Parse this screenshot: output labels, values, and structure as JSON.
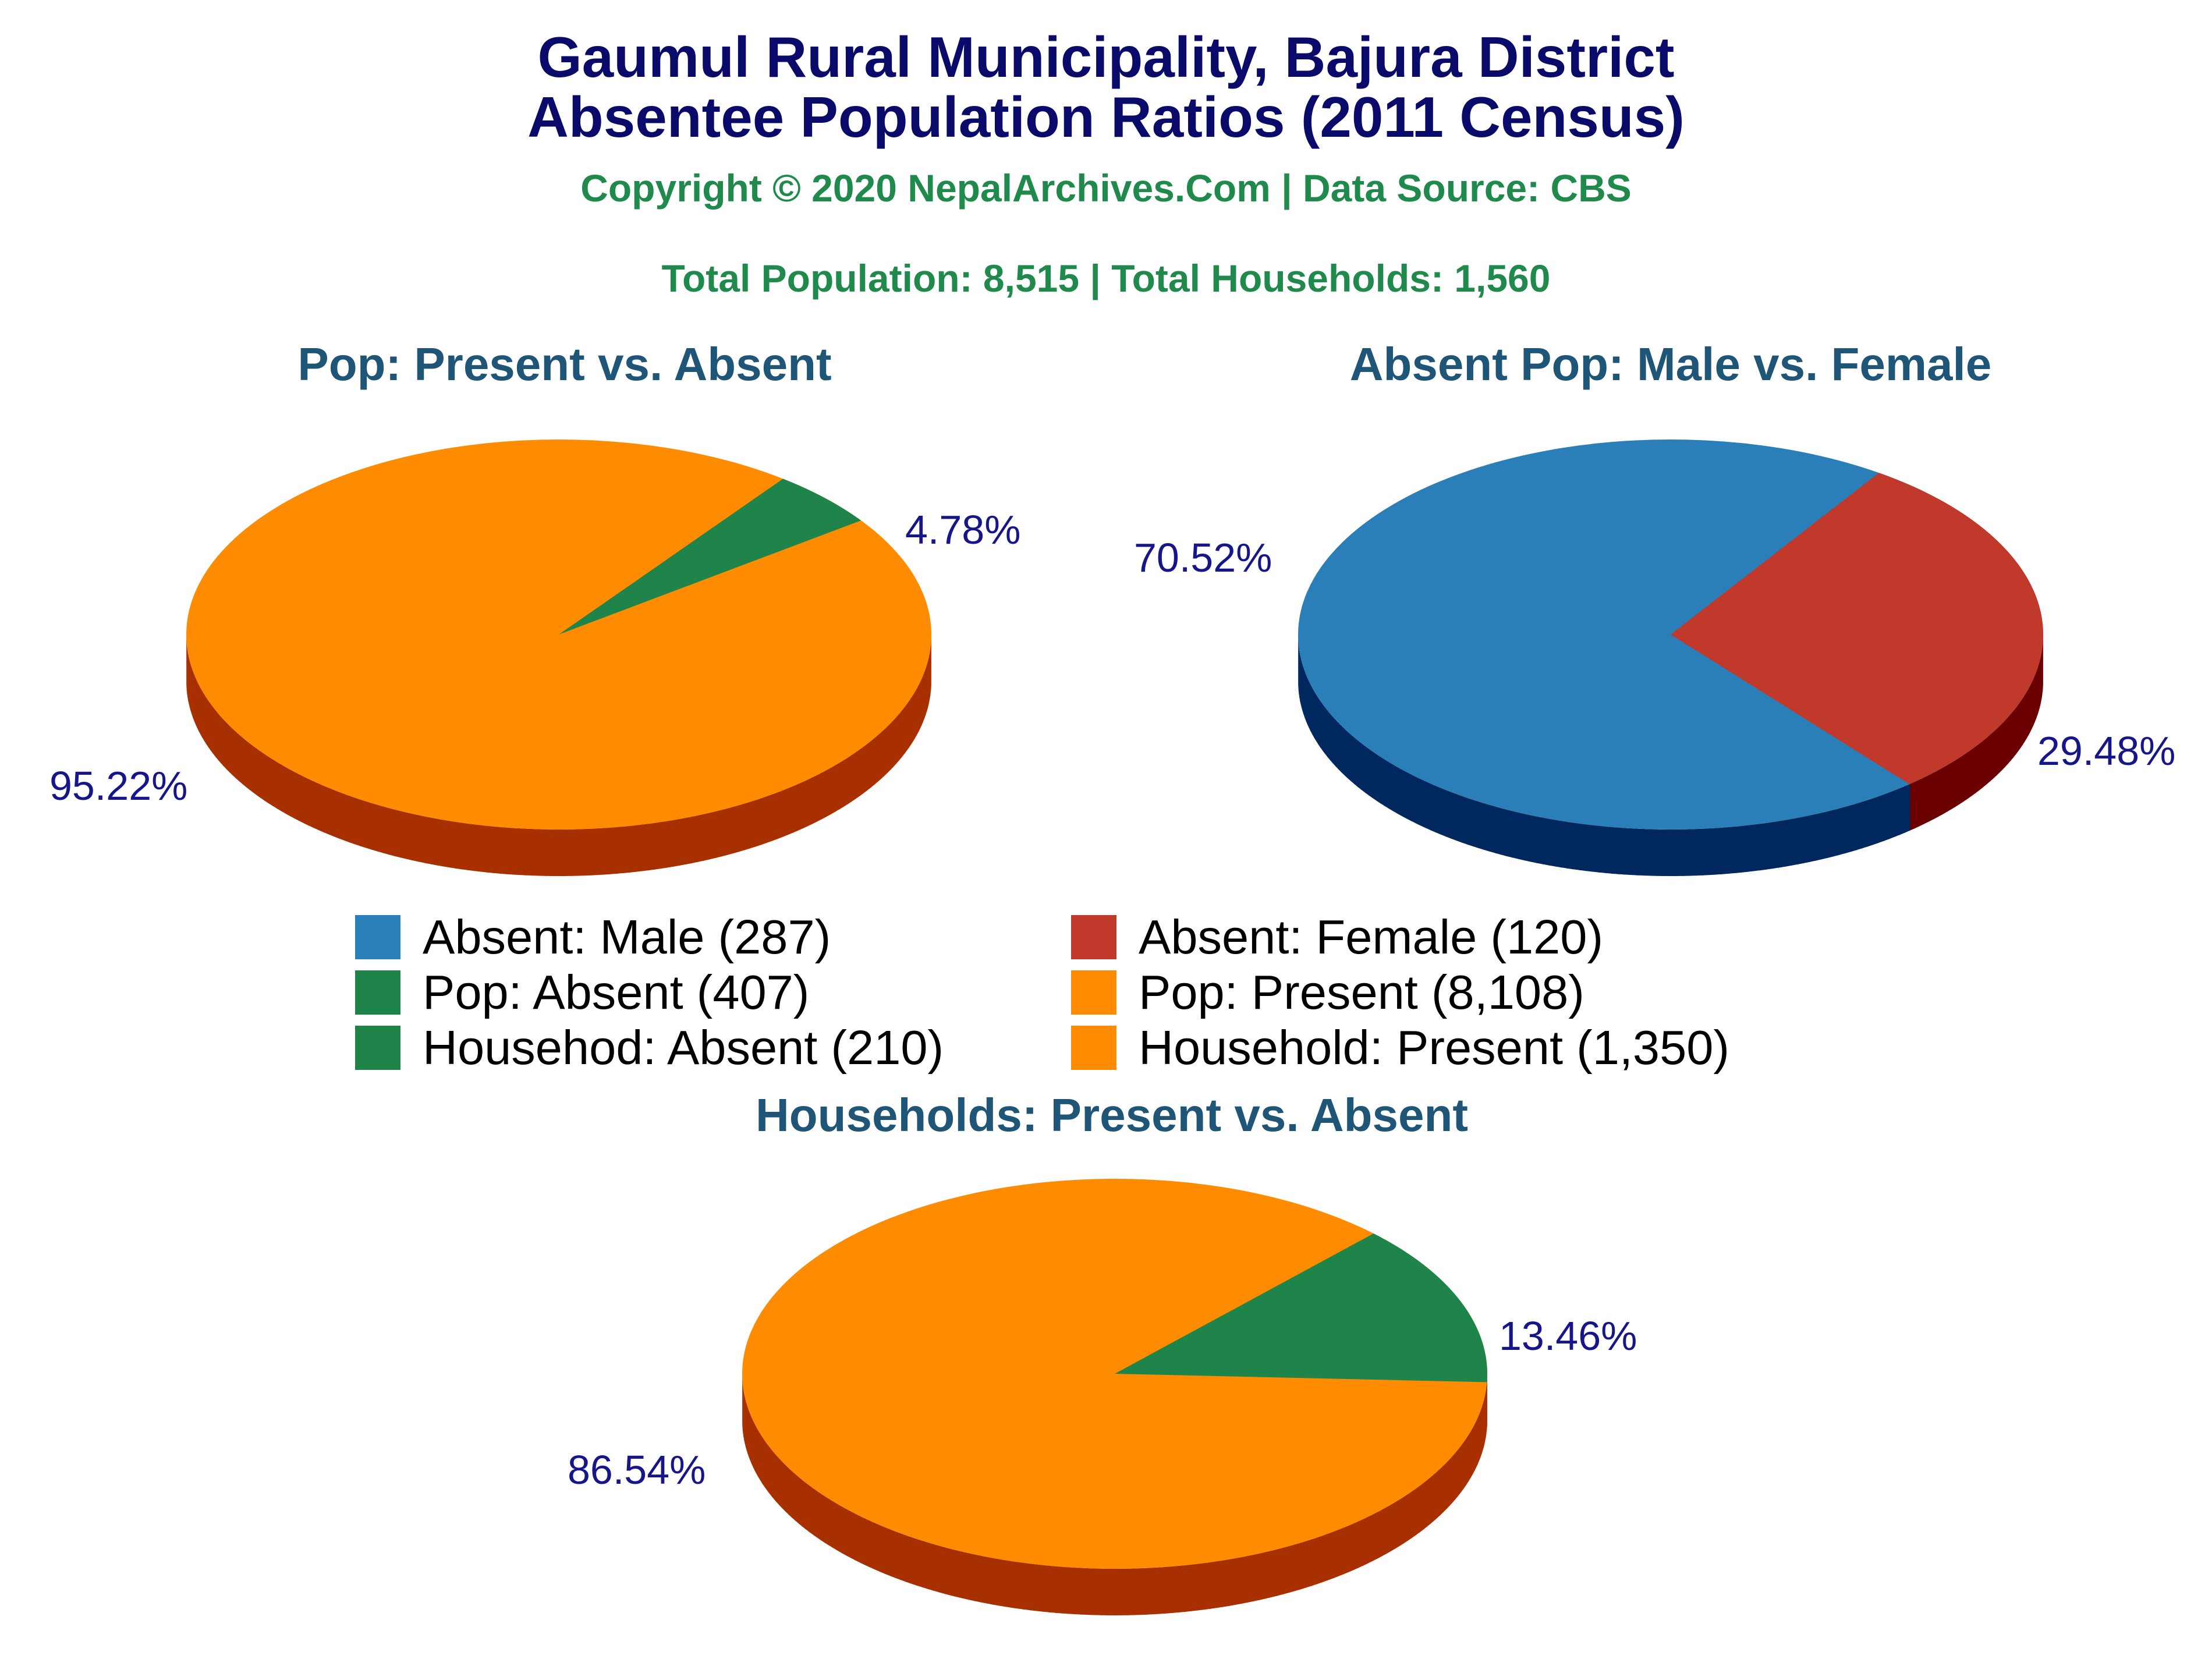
{
  "title_line1": "Gaumul Rural Municipality, Bajura District",
  "title_line2": "Absentee Population Ratios (2011 Census)",
  "copyright": "Copyright © 2020 NepalArchives.Com | Data Source: CBS",
  "totals": "Total Population: 8,515 | Total Households: 1,560",
  "chart_data": [
    {
      "type": "pie",
      "title": "Pop: Present vs. Absent",
      "slices": [
        {
          "label": "Pop: Present",
          "value": 8108,
          "percent_label": "95.22%",
          "color": "#ff8c00",
          "side_color": "#a83000"
        },
        {
          "label": "Pop: Absent",
          "value": 407,
          "percent_label": "4.78%",
          "color": "#1e8449",
          "side_color": "#0b3d1f"
        }
      ]
    },
    {
      "type": "pie",
      "title": "Absent Pop: Male vs. Female",
      "slices": [
        {
          "label": "Absent: Male",
          "value": 287,
          "percent_label": "70.52%",
          "color": "#2a7fb8",
          "side_color": "#00285e"
        },
        {
          "label": "Absent: Female",
          "value": 120,
          "percent_label": "29.48%",
          "color": "#c0392b",
          "side_color": "#6a0000"
        }
      ]
    },
    {
      "type": "pie",
      "title": "Households: Present vs. Absent",
      "slices": [
        {
          "label": "Household: Present",
          "value": 1350,
          "percent_label": "86.54%",
          "color": "#ff8c00",
          "side_color": "#a83000"
        },
        {
          "label": "Househod: Absent",
          "value": 210,
          "percent_label": "13.46%",
          "color": "#1e8449",
          "side_color": "#0b3d1f"
        }
      ]
    }
  ],
  "legend": [
    {
      "label": "Absent: Male (287)",
      "color": "#2a7fb8"
    },
    {
      "label": "Absent: Female (120)",
      "color": "#c0392b"
    },
    {
      "label": "Pop: Absent (407)",
      "color": "#1e8449"
    },
    {
      "label": "Pop: Present (8,108)",
      "color": "#ff8c00"
    },
    {
      "label": "Househod: Absent (210)",
      "color": "#1e8449"
    },
    {
      "label": "Household: Present (1,350)",
      "color": "#ff8c00"
    }
  ]
}
